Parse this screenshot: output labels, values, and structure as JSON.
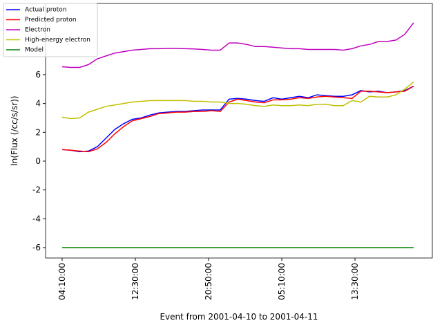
{
  "chart_data": {
    "type": "line",
    "xlabel": "Event from 2001-04-10 to 2001-04-11",
    "ylabel": "ln(Flux (/cc/s/sr))",
    "x": [
      "2001-04-10T04:10:00",
      "2001-04-10T05:10:00",
      "2001-04-10T06:10:00",
      "2001-04-10T07:10:00",
      "2001-04-10T08:10:00",
      "2001-04-10T09:10:00",
      "2001-04-10T10:10:00",
      "2001-04-10T11:10:00",
      "2001-04-10T12:10:00",
      "2001-04-10T13:10:00",
      "2001-04-10T14:10:00",
      "2001-04-10T15:10:00",
      "2001-04-10T16:10:00",
      "2001-04-10T17:10:00",
      "2001-04-10T18:10:00",
      "2001-04-10T19:10:00",
      "2001-04-10T20:10:00",
      "2001-04-10T21:10:00",
      "2001-04-10T22:10:00",
      "2001-04-10T23:10:00",
      "2001-04-11T00:10:00",
      "2001-04-11T01:10:00",
      "2001-04-11T02:10:00",
      "2001-04-11T03:10:00",
      "2001-04-11T04:10:00",
      "2001-04-11T05:10:00",
      "2001-04-11T06:10:00",
      "2001-04-11T07:10:00",
      "2001-04-11T08:10:00",
      "2001-04-11T09:10:00",
      "2001-04-11T10:10:00",
      "2001-04-11T11:10:00",
      "2001-04-11T12:10:00",
      "2001-04-11T13:10:00",
      "2001-04-11T14:10:00",
      "2001-04-11T15:10:00",
      "2001-04-11T16:10:00",
      "2001-04-11T17:10:00",
      "2001-04-11T18:10:00",
      "2001-04-11T19:10:00",
      "2001-04-11T20:10:00"
    ],
    "series": [
      {
        "name": "Actual proton",
        "color": "#0000ff",
        "values": [
          0.8,
          0.75,
          0.65,
          0.7,
          1.0,
          1.6,
          2.2,
          2.6,
          2.9,
          3.0,
          3.2,
          3.35,
          3.4,
          3.45,
          3.45,
          3.5,
          3.55,
          3.55,
          3.55,
          4.3,
          4.35,
          4.3,
          4.2,
          4.15,
          4.4,
          4.3,
          4.4,
          4.5,
          4.4,
          4.6,
          4.55,
          4.5,
          4.5,
          4.6,
          4.9,
          4.8,
          4.85,
          4.75,
          4.8,
          4.9,
          5.2
        ]
      },
      {
        "name": "Predicted proton",
        "color": "#ff0000",
        "values": [
          0.8,
          0.75,
          0.7,
          0.65,
          0.85,
          1.3,
          1.9,
          2.4,
          2.8,
          2.95,
          3.1,
          3.3,
          3.35,
          3.4,
          3.4,
          3.45,
          3.45,
          3.5,
          3.45,
          4.1,
          4.3,
          4.2,
          4.1,
          4.05,
          4.25,
          4.25,
          4.3,
          4.4,
          4.35,
          4.45,
          4.5,
          4.45,
          4.4,
          4.35,
          4.85,
          4.85,
          4.8,
          4.75,
          4.8,
          4.85,
          5.2
        ]
      },
      {
        "name": "Electron",
        "color": "#bf00bf",
        "values": [
          6.55,
          6.5,
          6.5,
          6.7,
          7.1,
          7.3,
          7.5,
          7.6,
          7.7,
          7.75,
          7.8,
          7.8,
          7.82,
          7.82,
          7.8,
          7.78,
          7.75,
          7.7,
          7.7,
          8.2,
          8.2,
          8.1,
          7.95,
          7.95,
          7.9,
          7.85,
          7.8,
          7.8,
          7.75,
          7.75,
          7.75,
          7.75,
          7.7,
          7.8,
          8.0,
          8.1,
          8.3,
          8.3,
          8.4,
          8.8,
          9.6
        ]
      },
      {
        "name": "High-energy electron",
        "color": "#bfbf00",
        "values": [
          3.05,
          2.95,
          3.0,
          3.4,
          3.6,
          3.8,
          3.9,
          4.0,
          4.1,
          4.15,
          4.2,
          4.2,
          4.2,
          4.2,
          4.2,
          4.15,
          4.15,
          4.1,
          4.1,
          4.0,
          4.0,
          3.95,
          3.85,
          3.8,
          3.9,
          3.85,
          3.85,
          3.9,
          3.85,
          3.95,
          3.95,
          3.85,
          3.85,
          4.2,
          4.1,
          4.5,
          4.45,
          4.45,
          4.6,
          5.0,
          5.5
        ]
      },
      {
        "name": "Model",
        "color": "#008000",
        "values": [
          -6,
          -6,
          -6,
          -6,
          -6,
          -6,
          -6,
          -6,
          -6,
          -6,
          -6,
          -6,
          -6,
          -6,
          -6,
          -6,
          -6,
          -6,
          -6,
          -6,
          -6,
          -6,
          -6,
          -6,
          -6,
          -6,
          -6,
          -6,
          -6,
          -6,
          -6,
          -6,
          -6,
          -6,
          -6,
          -6,
          -6,
          -6,
          -6,
          -6,
          -6
        ]
      }
    ],
    "xlim": [
      "2001-04-10T02:17:00",
      "2001-04-11T22:18:00"
    ],
    "xticks": [
      {
        "value": "2001-04-10T04:10:00",
        "label": "04:10:00"
      },
      {
        "value": "2001-04-10T12:30:00",
        "label": "12:30:00"
      },
      {
        "value": "2001-04-10T20:50:00",
        "label": "20:50:00"
      },
      {
        "value": "2001-04-11T05:10:00",
        "label": "05:10:00"
      },
      {
        "value": "2001-04-11T13:30:00",
        "label": "13:30:00"
      }
    ],
    "ylim": [
      -6.72,
      10.94
    ],
    "yticks": [
      -6,
      -4,
      -2,
      0,
      2,
      4,
      6
    ],
    "legend": "upper left"
  }
}
